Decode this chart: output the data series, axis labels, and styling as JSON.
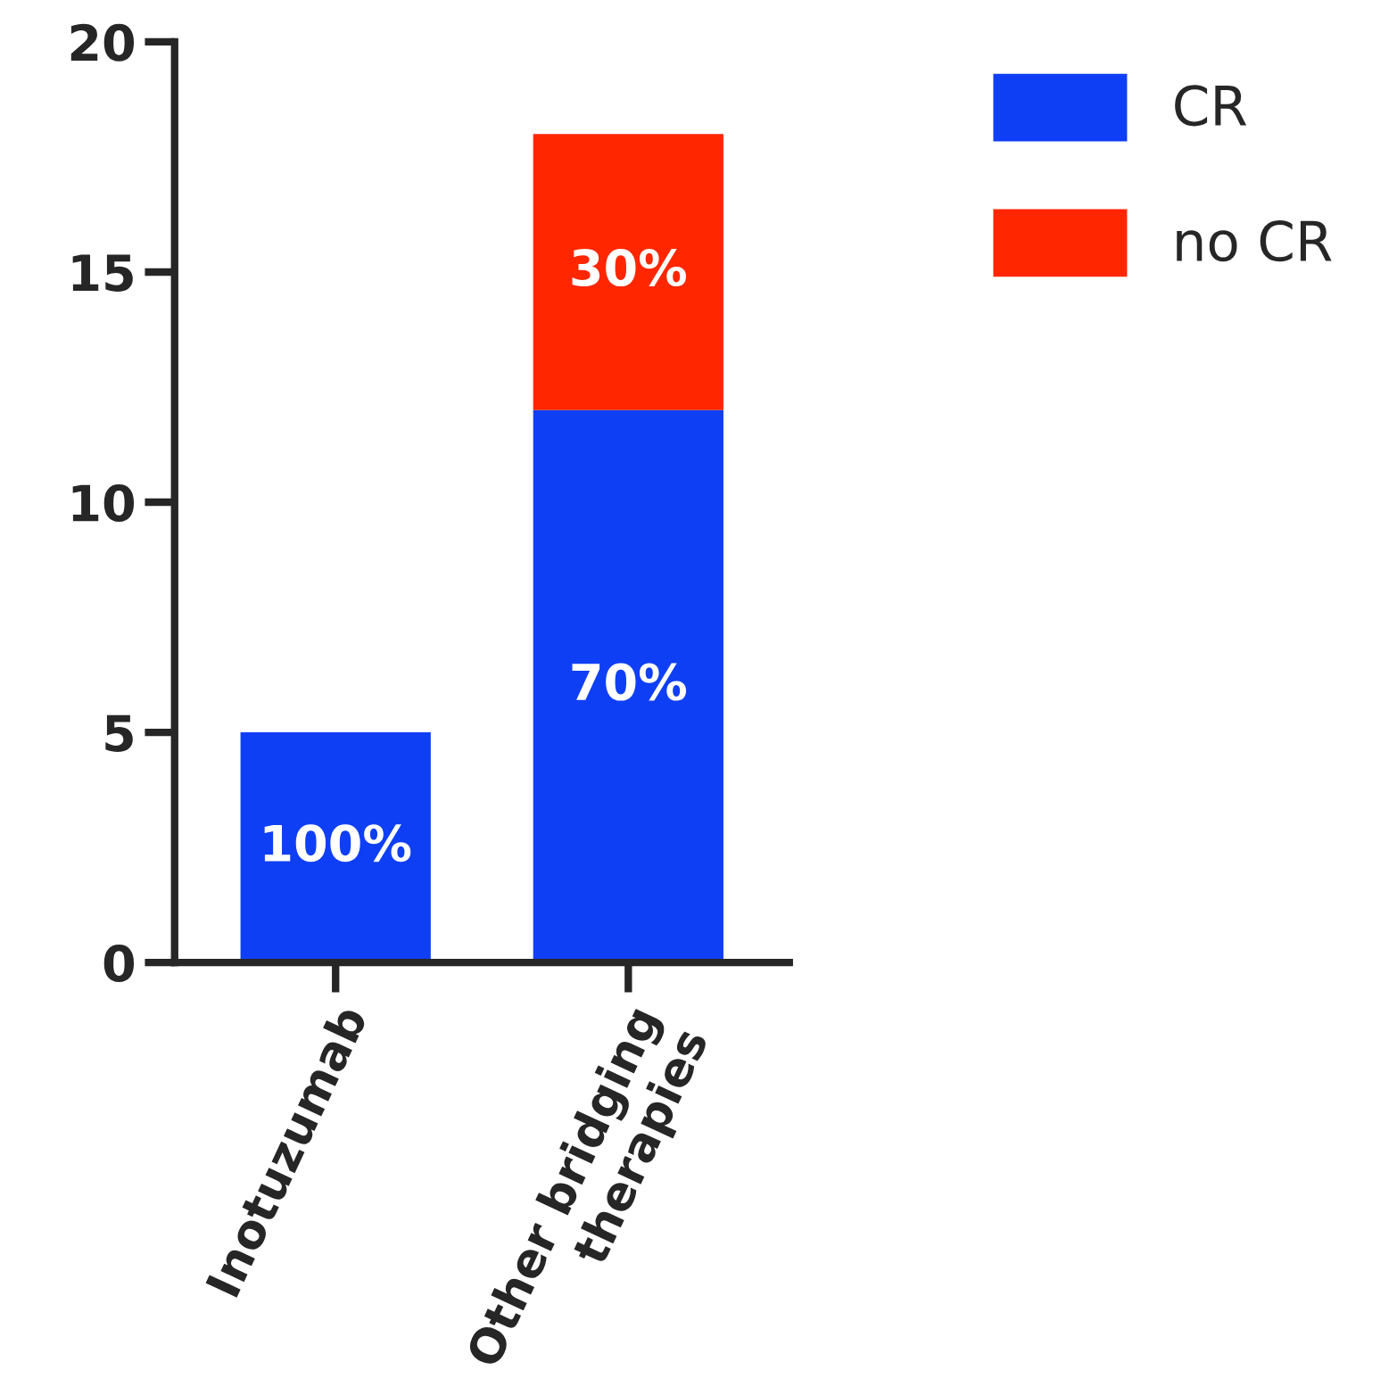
{
  "chart_data": {
    "type": "bar",
    "stacked": true,
    "categories": [
      "Inotuzumab",
      "Other bridging\ntherapies"
    ],
    "series": [
      {
        "name": "CR",
        "color": "#0f3ff5",
        "values": [
          5,
          12
        ]
      },
      {
        "name": "no CR",
        "color": "#ff2600",
        "values": [
          0,
          6
        ]
      }
    ],
    "annotations": [
      "100%",
      "70%",
      "30%"
    ],
    "ylim": [
      0,
      20
    ],
    "yticks": [
      0,
      5,
      10,
      15,
      20
    ],
    "grid": false,
    "legend": "top right"
  }
}
